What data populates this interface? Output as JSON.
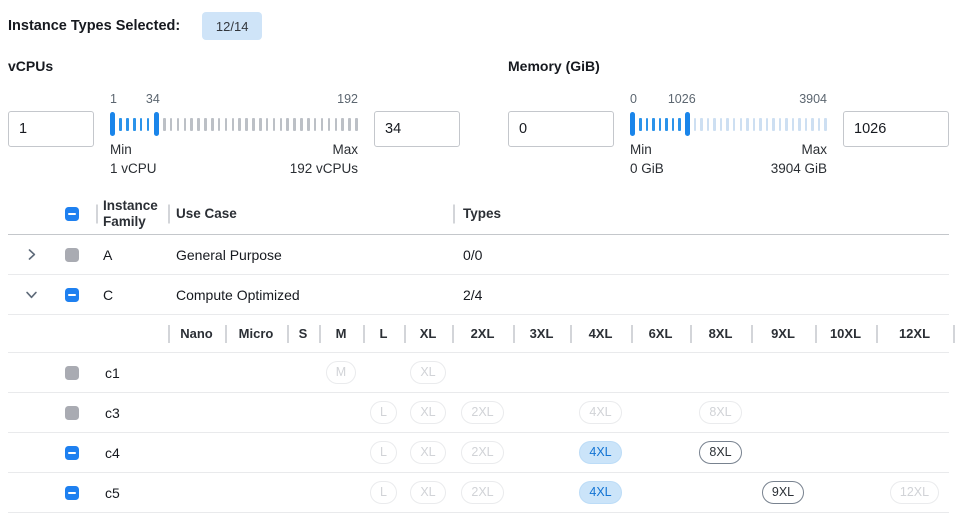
{
  "page": {
    "selected_label": "Instance Types Selected:",
    "selected_badge": "12/14"
  },
  "filters": {
    "vcpus": {
      "label": "vCPUs",
      "min_input": "1",
      "max_input": "34",
      "scale_labels": [
        "1",
        "34",
        "192"
      ],
      "range_min": 1,
      "range_max": 192,
      "current_min": 1,
      "current_max": 34,
      "min_caption": "Min",
      "min_value_caption": "1 vCPU",
      "max_caption": "Max",
      "max_value_caption": "192 vCPUs"
    },
    "memory": {
      "label": "Memory (GiB)",
      "min_input": "0",
      "max_input": "1026",
      "scale_labels": [
        "0",
        "1026",
        "3904"
      ],
      "range_min": 0,
      "range_max": 3904,
      "current_min": 0,
      "current_max": 1026,
      "min_caption": "Min",
      "min_value_caption": "0 GiB",
      "max_caption": "Max",
      "max_value_caption": "3904 GiB"
    }
  },
  "table": {
    "select_all_state": "indeterminate",
    "header": {
      "family": "Instance Family",
      "use_case": "Use Case",
      "types": "Types"
    },
    "sizes": [
      "Nano",
      "Micro",
      "S",
      "M",
      "L",
      "XL",
      "2XL",
      "3XL",
      "4XL",
      "6XL",
      "8XL",
      "9XL",
      "10XL",
      "12XL"
    ],
    "family_rows": [
      {
        "family": "A",
        "use_case": "General Purpose",
        "types": "0/0",
        "expanded": false,
        "checkbox": "disabled"
      },
      {
        "family": "C",
        "use_case": "Compute Optimized",
        "types": "2/4",
        "expanded": true,
        "checkbox": "indeterminate"
      }
    ],
    "instance_rows": [
      {
        "name": "c1",
        "checkbox": "disabled",
        "pills": [
          {
            "size": "M",
            "state": "disabled"
          },
          {
            "size": "XL",
            "state": "disabled"
          }
        ]
      },
      {
        "name": "c3",
        "checkbox": "disabled",
        "pills": [
          {
            "size": "L",
            "state": "disabled"
          },
          {
            "size": "XL",
            "state": "disabled"
          },
          {
            "size": "2XL",
            "state": "disabled"
          },
          {
            "size": "4XL",
            "state": "disabled"
          },
          {
            "size": "8XL",
            "state": "disabled"
          }
        ]
      },
      {
        "name": "c4",
        "checkbox": "indeterminate",
        "pills": [
          {
            "size": "L",
            "state": "disabled"
          },
          {
            "size": "XL",
            "state": "disabled"
          },
          {
            "size": "2XL",
            "state": "disabled"
          },
          {
            "size": "4XL",
            "state": "selected"
          },
          {
            "size": "8XL",
            "state": "enabled"
          }
        ]
      },
      {
        "name": "c5",
        "checkbox": "indeterminate",
        "pills": [
          {
            "size": "L",
            "state": "disabled"
          },
          {
            "size": "XL",
            "state": "disabled"
          },
          {
            "size": "2XL",
            "state": "disabled"
          },
          {
            "size": "4XL",
            "state": "selected"
          },
          {
            "size": "9XL",
            "state": "enabled"
          },
          {
            "size": "12XL",
            "state": "disabled"
          }
        ]
      }
    ]
  },
  "colors": {
    "accent_blue": "#1e80f0",
    "badge_bg": "#cfe4f8",
    "selected_pill_bg": "#cbe4f9",
    "selected_pill_text": "#1273d3",
    "tick_selected": "#2b93ea",
    "tick_unselected_vcpus": "#bcc0c6",
    "tick_unselected_memory": "#cddff2",
    "disabled_checkbox": "#a9abb2"
  }
}
